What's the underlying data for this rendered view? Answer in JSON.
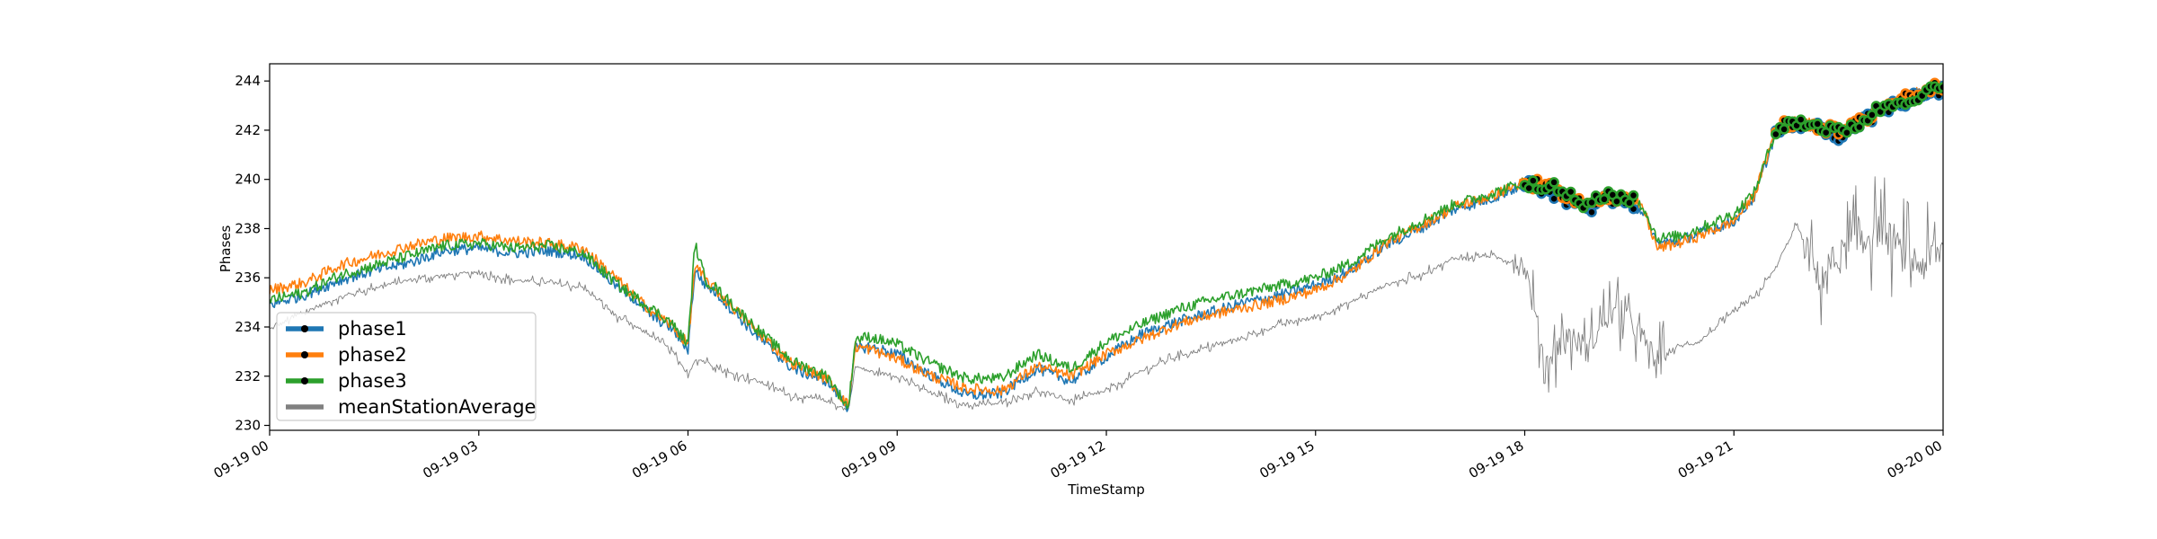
{
  "chart_data": {
    "type": "line",
    "title": "",
    "xlabel": "TimeStamp",
    "ylabel": "Phases",
    "x_ticks": [
      "09-19 00",
      "09-19 03",
      "09-19 06",
      "09-19 09",
      "09-19 12",
      "09-19 15",
      "09-19 18",
      "09-19 21",
      "09-20 00"
    ],
    "y_ticks": [
      "230",
      "232",
      "234",
      "236",
      "238",
      "240",
      "242",
      "244"
    ],
    "xlim_hours": [
      0,
      24
    ],
    "ylim": [
      229.8,
      244.7
    ],
    "grid": false,
    "legend_position": "lower-left",
    "x_hours": [
      0,
      0.5,
      1,
      1.5,
      2,
      2.5,
      3,
      3.5,
      4,
      4.5,
      5,
      5.25,
      5.5,
      5.75,
      6,
      6.1,
      6.25,
      6.4,
      6.5,
      7,
      7.5,
      8,
      8.3,
      8.4,
      8.6,
      9,
      9.5,
      10,
      10.5,
      11,
      11.5,
      12,
      12.5,
      13,
      13.5,
      14,
      14.5,
      15,
      15.5,
      16,
      16.5,
      17,
      17.5,
      18,
      18.3,
      18.6,
      18.9,
      19.2,
      19.5,
      19.7,
      19.9,
      20.2,
      20.5,
      21,
      21.3,
      21.6,
      21.9,
      22.2,
      22.5,
      22.8,
      23.1,
      23.4,
      23.7,
      24
    ],
    "series": [
      {
        "name": "phase1",
        "color": "#1f77b4",
        "values": [
          234.9,
          235.3,
          235.9,
          236.3,
          236.6,
          237.1,
          237.2,
          237.0,
          237.1,
          236.9,
          235.6,
          235.1,
          234.4,
          234.0,
          233.1,
          236.3,
          235.7,
          235.4,
          235.1,
          233.6,
          232.3,
          231.8,
          230.7,
          233.1,
          233.2,
          232.9,
          232.0,
          231.2,
          231.3,
          232.3,
          231.8,
          232.8,
          233.7,
          234.2,
          234.6,
          235.0,
          235.3,
          235.7,
          236.3,
          237.3,
          238.0,
          238.8,
          239.2,
          239.8,
          239.6,
          239.2,
          238.8,
          239.3,
          239.0,
          238.7,
          237.4,
          237.5,
          237.8,
          238.3,
          239.3,
          241.9,
          242.3,
          242.1,
          241.8,
          242.2,
          242.8,
          243.1,
          243.4,
          243.6
        ]
      },
      {
        "name": "phase2",
        "color": "#ff7f0e",
        "values": [
          235.5,
          235.8,
          236.5,
          236.9,
          237.3,
          237.6,
          237.7,
          237.5,
          237.4,
          237.2,
          235.9,
          235.2,
          234.6,
          234.1,
          233.3,
          236.5,
          235.9,
          235.5,
          235.2,
          233.8,
          232.5,
          231.9,
          230.8,
          233.2,
          233.1,
          232.7,
          232.0,
          231.5,
          231.4,
          232.4,
          232.0,
          232.9,
          233.5,
          234.1,
          234.5,
          234.8,
          235.1,
          235.5,
          236.2,
          237.4,
          238.1,
          238.9,
          239.3,
          239.9,
          239.7,
          239.3,
          238.9,
          239.4,
          239.1,
          238.8,
          237.2,
          237.4,
          237.7,
          238.3,
          239.4,
          242.0,
          242.4,
          242.2,
          241.9,
          242.3,
          242.9,
          243.3,
          243.6,
          243.8
        ]
      },
      {
        "name": "phase3",
        "color": "#2ca02c",
        "values": [
          235.1,
          235.4,
          236.1,
          236.5,
          236.9,
          237.3,
          237.4,
          237.2,
          237.3,
          237.0,
          235.7,
          235.2,
          234.7,
          234.2,
          233.3,
          237.4,
          235.9,
          235.6,
          235.3,
          233.9,
          232.6,
          232.0,
          230.7,
          233.5,
          233.6,
          233.3,
          232.5,
          231.9,
          231.9,
          232.9,
          232.3,
          233.4,
          234.1,
          234.7,
          235.1,
          235.4,
          235.7,
          236.0,
          236.6,
          237.6,
          238.3,
          239.0,
          239.4,
          239.9,
          239.8,
          239.4,
          238.9,
          239.4,
          239.2,
          238.9,
          237.6,
          237.7,
          238.0,
          238.6,
          239.5,
          242.0,
          242.4,
          242.2,
          241.9,
          242.3,
          242.9,
          243.2,
          243.5,
          243.7
        ]
      },
      {
        "name": "meanStationAverage",
        "color": "#808080",
        "values": [
          233.9,
          234.6,
          235.2,
          235.6,
          235.9,
          236.1,
          236.2,
          235.9,
          235.8,
          235.6,
          234.4,
          234.0,
          233.6,
          233.1,
          232.0,
          232.7,
          232.6,
          232.4,
          232.2,
          231.8,
          231.2,
          231.0,
          230.6,
          232.4,
          232.2,
          232.0,
          231.3,
          230.8,
          230.9,
          231.4,
          231.0,
          231.4,
          232.2,
          232.8,
          233.2,
          233.6,
          234.1,
          234.4,
          235.0,
          235.7,
          236.1,
          236.8,
          236.9,
          236.5,
          232.5,
          233.8,
          233.0,
          234.6,
          234.3,
          233.5,
          232.6,
          233.2,
          233.4,
          234.6,
          235.2,
          236.4,
          238.2,
          236.0,
          236.8,
          237.5,
          238.0,
          237.0,
          236.5,
          237.2
        ]
      }
    ],
    "anomaly_marker_color": "#000000"
  }
}
